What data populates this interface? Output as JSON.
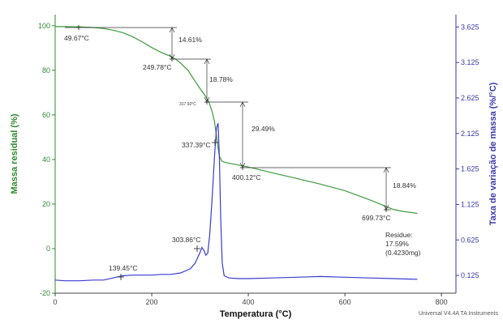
{
  "chart_data": {
    "type": "line",
    "xlabel": "Temperatura (°C)",
    "ylabel_left": "Massa residual (%)",
    "ylabel_right": "Taxa de variação de massa (%/°C)",
    "xlim": [
      0,
      830
    ],
    "ylim_left": [
      -20,
      105
    ],
    "ylim_right": [
      -0.125,
      3.8
    ],
    "x_ticks": [
      "0",
      "200",
      "400",
      "600",
      "800"
    ],
    "y_ticks_left": [
      "-20",
      "0",
      "20",
      "40",
      "60",
      "80",
      "100"
    ],
    "y_ticks_right": [
      "0.125",
      "0.625",
      "1.125",
      "1.625",
      "2.125",
      "2.625",
      "3.125",
      "3.625"
    ],
    "grid": false,
    "colors": {
      "mass": "#3f9a3f",
      "rate": "#3b3bd0",
      "axis_left": "#2e8b2e",
      "axis_right": "#3a3aa8",
      "annotation": "#333333"
    },
    "series": [
      {
        "axis": "left",
        "x": [
          0,
          20,
          49.67,
          80,
          100,
          120,
          140,
          160,
          180,
          200,
          220,
          240,
          249.78,
          260,
          275,
          290,
          300,
          310,
          317.92,
          325,
          330,
          335,
          337.39,
          340,
          345,
          350,
          360,
          380,
          400.12,
          450,
          500,
          550,
          600,
          650,
          699.73,
          720,
          750
        ],
        "y": [
          99.6,
          99.6,
          99.5,
          99.2,
          98.8,
          98.0,
          96.9,
          95.1,
          92.8,
          90.2,
          88.0,
          86.2,
          84.9,
          83.2,
          80.0,
          75.0,
          71.8,
          68.8,
          66.1,
          61.5,
          57.0,
          49.0,
          45.0,
          41.5,
          39.3,
          38.8,
          38.3,
          37.5,
          36.6,
          34.0,
          31.5,
          28.9,
          26.0,
          22.0,
          17.6,
          16.7,
          15.8
        ]
      },
      {
        "axis": "right",
        "x": [
          0,
          20,
          50,
          80,
          100,
          120,
          139.45,
          160,
          180,
          200,
          220,
          240,
          260,
          280,
          290,
          300,
          303.86,
          308,
          312,
          316,
          320,
          325,
          330,
          334,
          337.39,
          340,
          343,
          346,
          350,
          360,
          380,
          400,
          450,
          500,
          550,
          600,
          650,
          700,
          750
        ],
        "y": [
          0.06,
          0.05,
          0.05,
          0.06,
          0.06,
          0.09,
          0.12,
          0.13,
          0.13,
          0.13,
          0.14,
          0.14,
          0.16,
          0.22,
          0.3,
          0.45,
          0.52,
          0.48,
          0.41,
          0.44,
          0.7,
          1.2,
          1.8,
          2.2,
          2.27,
          1.8,
          0.9,
          0.3,
          0.12,
          0.09,
          0.08,
          0.08,
          0.09,
          0.1,
          0.11,
          0.1,
          0.09,
          0.08,
          0.07
        ]
      }
    ],
    "annotations": {
      "onset1": "49.67°C",
      "step1": "14.61%",
      "onset2": "249.78°C",
      "step2": "18.78%",
      "onset3": "317.92°C",
      "step3": "29.49%",
      "onset4": "400.12°C",
      "peak": "337.39°C",
      "step4": "18.84%",
      "onset5": "699.73°C",
      "residue_line1": "Residue:",
      "residue_line2": "17.59%",
      "residue_line3": "(0.4230mg)",
      "dtg1": "139.45°C",
      "dtg2": "303.86°C"
    },
    "footer": "Universal V4.4A TA Instruments"
  }
}
